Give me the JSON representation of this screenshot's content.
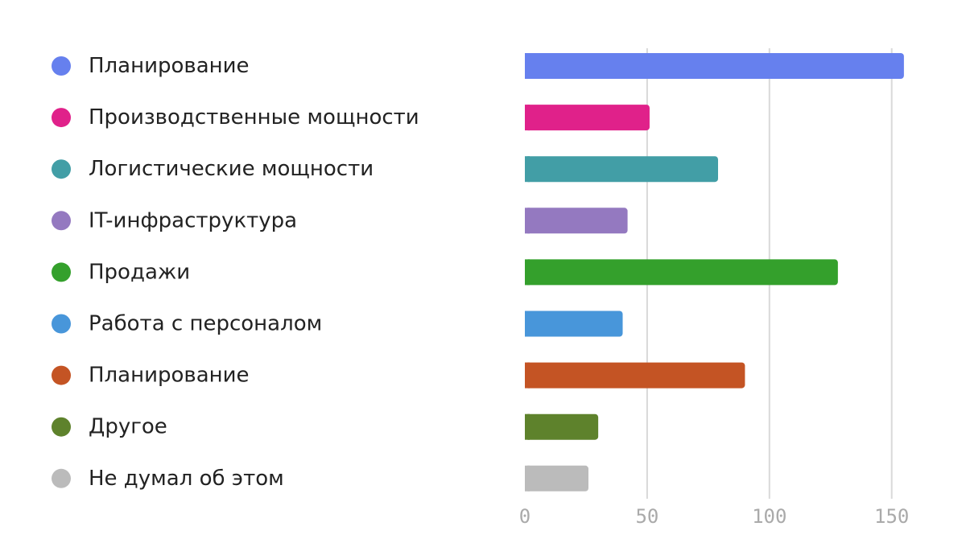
{
  "chart_data": {
    "type": "bar",
    "orientation": "horizontal",
    "categories": [
      "Планирование",
      "Производственные мощности",
      "Логистические мощности",
      "IT-инфраструктура",
      "Продажи",
      "Работа с персоналом",
      "Планирование",
      "Другое",
      "Не думал об этом"
    ],
    "values": [
      155,
      51,
      79,
      42,
      128,
      40,
      90,
      30,
      26
    ],
    "colors": [
      "#6680ee",
      "#e0218a",
      "#429ea6",
      "#9479c0",
      "#34a02c",
      "#4896da",
      "#c45424",
      "#5e822c",
      "#bbbbbb"
    ],
    "xlim": [
      0,
      158
    ],
    "xticks": [
      0,
      50,
      100,
      150
    ],
    "xtick_labels": [
      "0",
      "50",
      "100",
      "150"
    ],
    "grid": true,
    "legend_placement": "left"
  }
}
